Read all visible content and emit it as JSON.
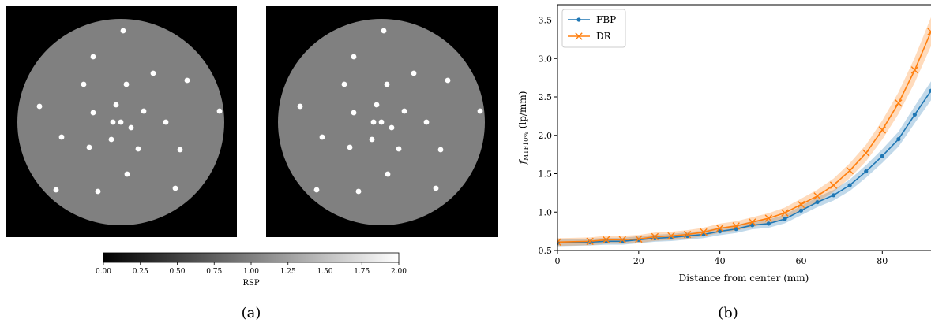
{
  "panel_a": {
    "caption": "(a)",
    "colorbar": {
      "label": "RSP",
      "range": [
        0.0,
        2.0
      ],
      "ticks": [
        "0.00",
        "0.25",
        "0.50",
        "0.75",
        "1.00",
        "1.25",
        "1.50",
        "1.75",
        "2.00"
      ]
    },
    "phantom": {
      "background_value": 1.0,
      "insert_value": 2.0,
      "images": 2
    }
  },
  "panel_b": {
    "caption": "(b)",
    "colors": {
      "FBP": "#1f77b4",
      "DR": "#ff7f0e"
    },
    "legend": {
      "placement": "top-left",
      "entries": [
        "FBP",
        "DR"
      ]
    }
  },
  "chart_data": {
    "type": "line",
    "title": "",
    "xlabel": "Distance from center (mm)",
    "ylabel_main": "f",
    "ylabel_sub": "MTF10%",
    "ylabel_rest": " (lp/mm)",
    "xlim": [
      0,
      92
    ],
    "ylim": [
      0.5,
      3.7
    ],
    "xticks": [
      0,
      20,
      40,
      60,
      80
    ],
    "yticks": [
      0.5,
      1.0,
      1.5,
      2.0,
      2.5,
      3.0,
      3.5
    ],
    "ytick_labels": [
      "0.5",
      "1.0",
      "1.5",
      "2.0",
      "2.5",
      "3.0",
      "3.5"
    ],
    "grid": false,
    "series": [
      {
        "name": "FBP",
        "marker": "circle",
        "x": [
          0,
          8,
          12,
          16,
          20,
          24,
          28,
          32,
          36,
          40,
          44,
          48,
          52,
          56,
          60,
          64,
          68,
          72,
          76,
          80,
          84,
          88,
          92
        ],
        "y": [
          0.6,
          0.61,
          0.62,
          0.62,
          0.64,
          0.66,
          0.67,
          0.69,
          0.71,
          0.75,
          0.78,
          0.83,
          0.85,
          0.91,
          1.02,
          1.13,
          1.22,
          1.35,
          1.53,
          1.73,
          1.95,
          2.27,
          2.58
        ],
        "band": 0.08
      },
      {
        "name": "DR",
        "marker": "x",
        "x": [
          0,
          8,
          12,
          16,
          20,
          24,
          28,
          32,
          36,
          40,
          44,
          48,
          52,
          56,
          60,
          64,
          68,
          72,
          76,
          80,
          84,
          88,
          92
        ],
        "y": [
          0.61,
          0.62,
          0.64,
          0.64,
          0.65,
          0.68,
          0.69,
          0.71,
          0.74,
          0.79,
          0.82,
          0.87,
          0.92,
          0.99,
          1.1,
          1.21,
          1.35,
          1.54,
          1.77,
          2.07,
          2.42,
          2.85,
          3.35
        ],
        "band": 0.1
      }
    ]
  }
}
